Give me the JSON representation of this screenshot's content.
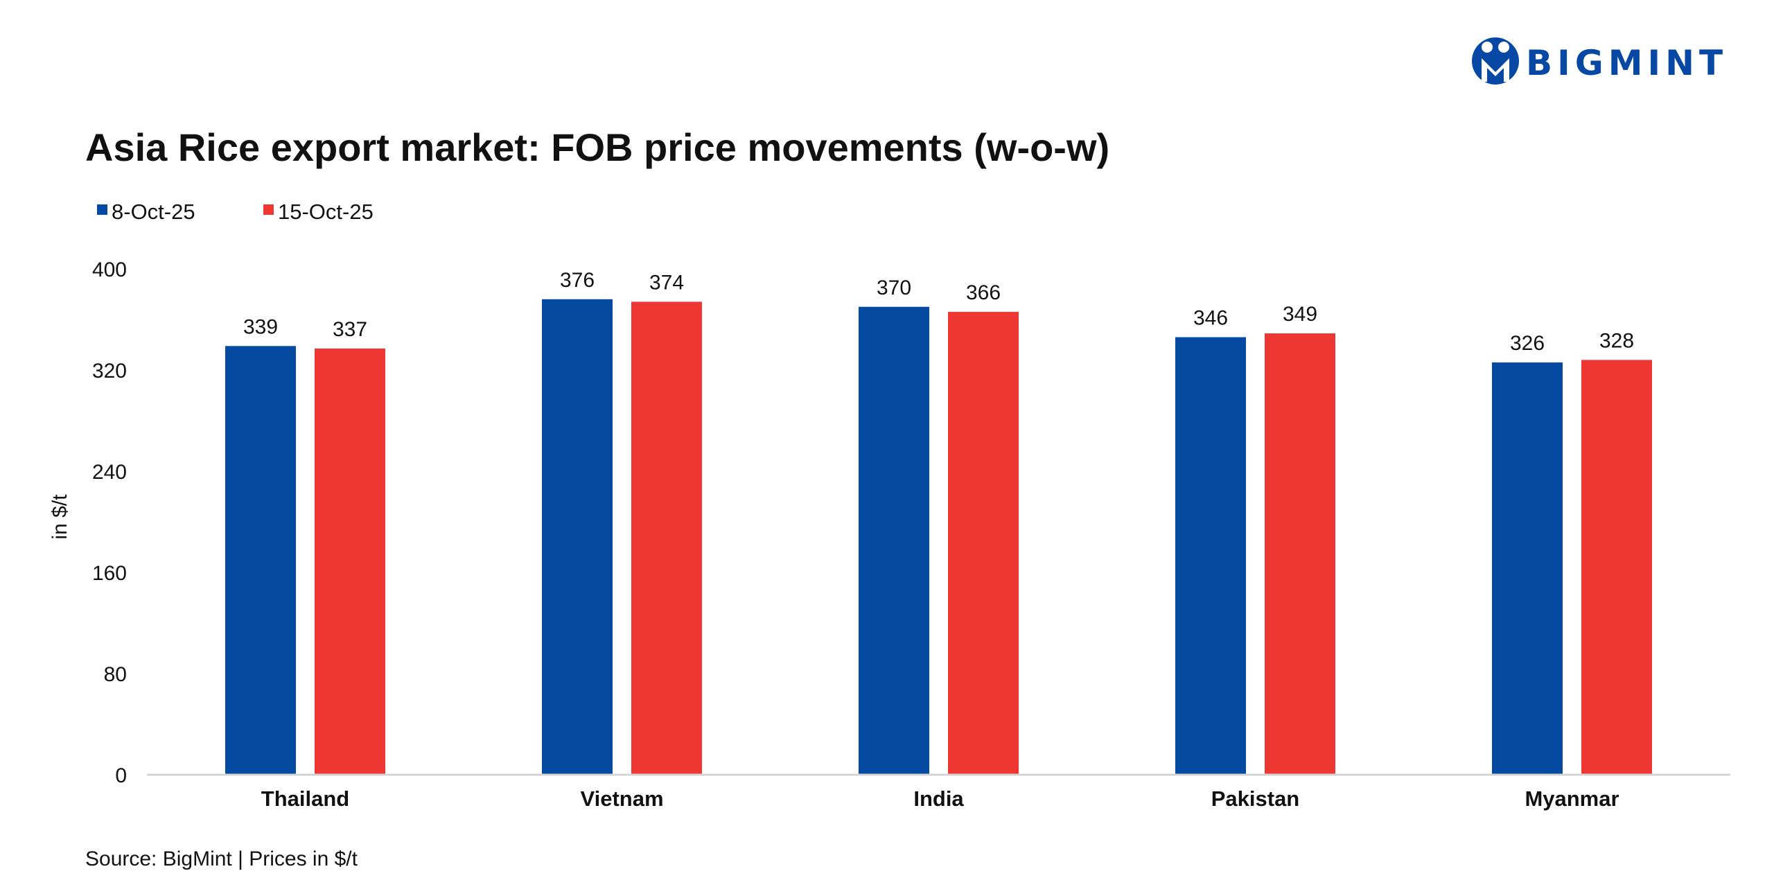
{
  "brand": {
    "name": "BIGMINT",
    "color": "#0648A3"
  },
  "chart_data": {
    "type": "bar",
    "title": "Asia Rice export market:  FOB price movements (w-o-w)",
    "categories": [
      "Thailand",
      "Vietnam",
      "India",
      "Pakistan",
      "Myanmar"
    ],
    "series": [
      {
        "name": "8-Oct-25",
        "color": "#054AA1",
        "values": [
          339,
          376,
          370,
          346,
          326
        ]
      },
      {
        "name": "15-Oct-25",
        "color": "#EE3733",
        "values": [
          337,
          374,
          366,
          349,
          328
        ]
      }
    ],
    "ylabel": "in $/t",
    "xlabel": "",
    "ylim": [
      0,
      400
    ],
    "yticks": [
      0,
      80,
      160,
      240,
      320,
      400
    ],
    "grid": false,
    "legend": "top-left",
    "source": "Source: BigMint | Prices in $/t"
  }
}
